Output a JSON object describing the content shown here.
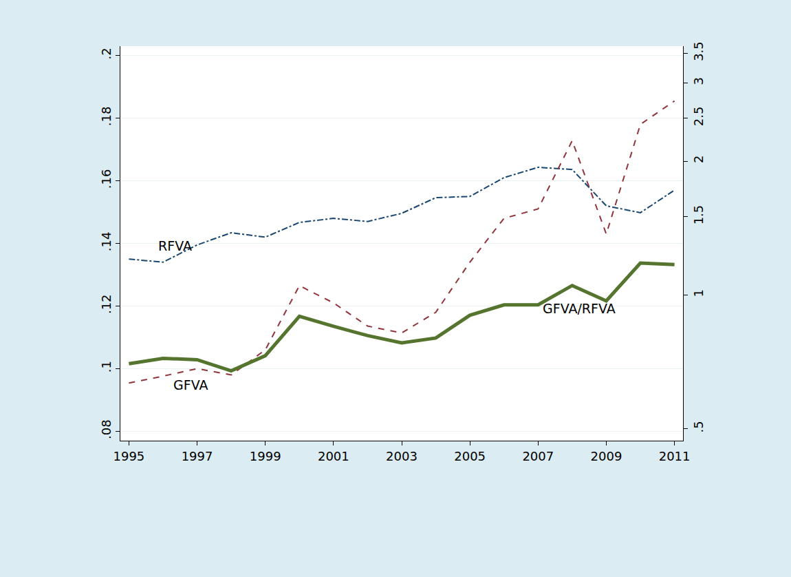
{
  "chart_data": {
    "type": "line",
    "x": [
      1995,
      1996,
      1997,
      1998,
      1999,
      2000,
      2001,
      2002,
      2003,
      2004,
      2005,
      2006,
      2007,
      2008,
      2009,
      2010,
      2011
    ],
    "series": [
      {
        "name": "RFVA",
        "color": "#1a476f",
        "line_style": "dashdot",
        "values": [
          0.135,
          0.134,
          0.1395,
          0.1434,
          0.142,
          0.1467,
          0.148,
          0.147,
          0.1496,
          0.1546,
          0.155,
          0.161,
          0.1643,
          0.1636,
          0.152,
          0.1498,
          0.157
        ]
      },
      {
        "name": "GFVA",
        "color": "#90353b",
        "line_style": "dash",
        "values": [
          0.0954,
          0.0976,
          0.1,
          0.098,
          0.106,
          0.1265,
          0.121,
          0.1136,
          0.1114,
          0.118,
          0.134,
          0.148,
          0.151,
          0.1728,
          0.143,
          0.178,
          0.1855
        ]
      },
      {
        "name": "GFVA/RFVA",
        "color": "#55752f",
        "line_style": "solid",
        "axis": "y2",
        "values": [
          0.7,
          0.72,
          0.715,
          0.675,
          0.73,
          0.895,
          0.85,
          0.81,
          0.78,
          0.8,
          0.9,
          0.95,
          0.95,
          1.05,
          0.97,
          1.18,
          1.17
        ]
      }
    ],
    "xlim": [
      1994.75,
      2011.25
    ],
    "xticks": [
      1995,
      1997,
      1999,
      2001,
      2003,
      2005,
      2007,
      2009,
      2011
    ],
    "ylim": [
      0.077,
      0.203
    ],
    "yticks": [
      {
        "value": 0.08,
        "label": ".08"
      },
      {
        "value": 0.1,
        "label": ".1"
      },
      {
        "value": 0.12,
        "label": ".12"
      },
      {
        "value": 0.14,
        "label": ".14"
      },
      {
        "value": 0.16,
        "label": ".16"
      },
      {
        "value": 0.18,
        "label": ".18"
      },
      {
        "value": 0.2,
        "label": ".2"
      }
    ],
    "y2lim": [
      0.47,
      3.63
    ],
    "y2ticks": [
      {
        "value": 0.5,
        "label": ".5"
      },
      1,
      1.5,
      2,
      2.5,
      3,
      3.5
    ],
    "log": "y2",
    "grid": true
  }
}
